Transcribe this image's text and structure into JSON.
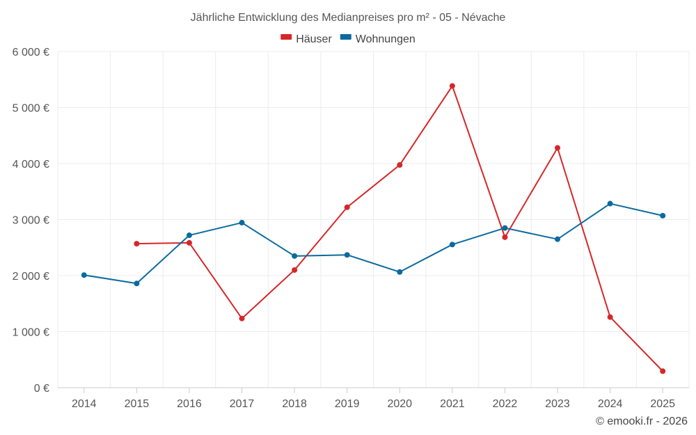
{
  "chart_data": {
    "type": "line",
    "title": "Jährliche Entwicklung des Medianpreises pro m² - 05 - Névache",
    "categories": [
      "2014",
      "2015",
      "2016",
      "2017",
      "2018",
      "2019",
      "2020",
      "2021",
      "2022",
      "2023",
      "2024",
      "2025"
    ],
    "series": [
      {
        "name": "Häuser",
        "color": "#d62728",
        "values": [
          null,
          2570,
          2585,
          1235,
          2100,
          3220,
          3975,
          5385,
          2685,
          4280,
          1260,
          295
        ]
      },
      {
        "name": "Wohnungen",
        "color": "#0b6a9e",
        "values": [
          2010,
          1860,
          2720,
          2945,
          2350,
          2370,
          2065,
          2555,
          2850,
          2650,
          3285,
          3070
        ]
      }
    ],
    "ylim": [
      0,
      6000
    ],
    "yticks": [
      0,
      1000,
      2000,
      3000,
      4000,
      5000,
      6000
    ],
    "ytick_labels": [
      "0 €",
      "1 000 €",
      "2 000 €",
      "3 000 €",
      "4 000 €",
      "5 000 €",
      "6 000 €"
    ],
    "xlabel": "",
    "ylabel": "",
    "grid": true,
    "legend_position": "top-center"
  },
  "credit": "© emooki.fr - 2026"
}
